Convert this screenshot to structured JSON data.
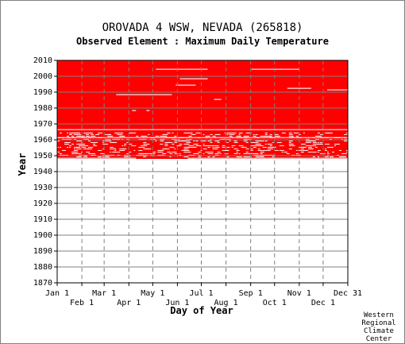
{
  "chart_data": {
    "type": "heatmap",
    "title": "OROVADA 4 WSW, NEVADA   (265818)",
    "subtitle": "Observed Element : Maximum Daily Temperature",
    "xlabel": "Day of Year",
    "ylabel": "Year",
    "xlim": [
      1,
      366
    ],
    "ylim": [
      1870,
      2010
    ],
    "x_ticks_top_row": [
      "Jan 1",
      "Mar 1",
      "May 1",
      "Jul 1",
      "Sep 1",
      "Nov 1",
      "Dec 31"
    ],
    "x_ticks_bottom_row": [
      "Feb 1",
      "Apr 1",
      "Jun 1",
      "Aug 1",
      "Oct 1",
      "Dec 1"
    ],
    "x_tick_days_top": [
      1,
      60,
      121,
      182,
      244,
      305,
      366
    ],
    "x_tick_days_bottom": [
      32,
      91,
      152,
      213,
      274,
      335
    ],
    "y_ticks": [
      2010,
      2000,
      1990,
      1980,
      1970,
      1960,
      1950,
      1940,
      1930,
      1920,
      1910,
      1900,
      1890,
      1880,
      1870
    ],
    "data_color": "#ff0000",
    "record_start_year": 1948,
    "record_end_year": 2010,
    "dense_record_start_year": 1965,
    "missing_segments": [
      {
        "year": 2004,
        "day_start": 125,
        "day_end": 190
      },
      {
        "year": 2004,
        "day_start": 245,
        "day_end": 305
      },
      {
        "year": 1998,
        "day_start": 155,
        "day_end": 190
      },
      {
        "year": 1994,
        "day_start": 150,
        "day_end": 175
      },
      {
        "year": 1992,
        "day_start": 290,
        "day_end": 320
      },
      {
        "year": 1991,
        "day_start": 340,
        "day_end": 366
      },
      {
        "year": 1988,
        "day_start": 75,
        "day_end": 130
      },
      {
        "year": 1988,
        "day_start": 130,
        "day_end": 145
      },
      {
        "year": 1985,
        "day_start": 198,
        "day_end": 207
      },
      {
        "year": 1978,
        "day_start": 95,
        "day_end": 100
      },
      {
        "year": 1978,
        "day_start": 113,
        "day_end": 117
      },
      {
        "year": 1966,
        "day_start": 1,
        "day_end": 366
      },
      {
        "year": 1961,
        "day_start": 1,
        "day_end": 366
      },
      {
        "year": 1948,
        "day_start": 1,
        "day_end": 100
      },
      {
        "year": 1948,
        "day_start": 165,
        "day_end": 366
      }
    ],
    "grid": true
  },
  "credit": {
    "line1": "Western",
    "line2": "Regional",
    "line3": "Climate",
    "line4": "Center"
  }
}
